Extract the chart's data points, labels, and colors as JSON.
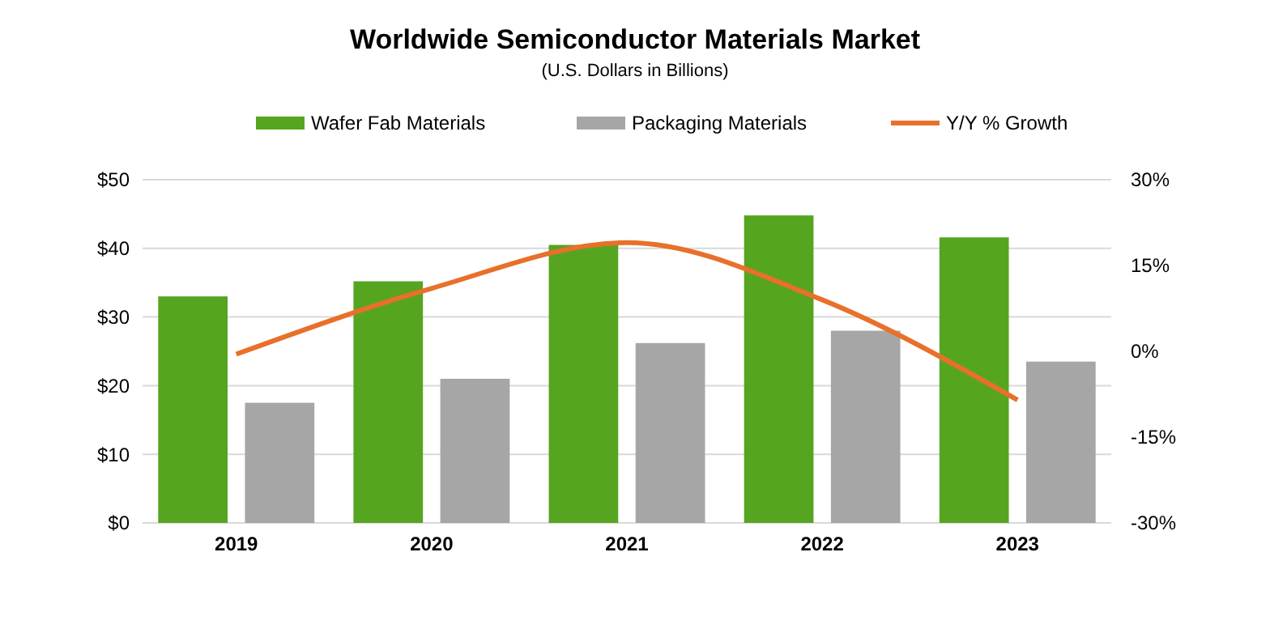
{
  "chart_data": {
    "type": "bar",
    "title": "Worldwide Semiconductor Materials Market",
    "subtitle": "(U.S. Dollars in Billions)",
    "categories": [
      "2019",
      "2020",
      "2021",
      "2022",
      "2023"
    ],
    "series": [
      {
        "name": "Wafer Fab Materials",
        "color": "#56a520",
        "values": [
          33,
          35.2,
          40.5,
          44.8,
          41.6
        ]
      },
      {
        "name": "Packaging  Materials",
        "color": "#a6a6a6",
        "values": [
          17.5,
          21,
          26.2,
          28,
          23.5
        ]
      },
      {
        "name": "Y/Y % Growth",
        "type": "line",
        "axis": "y2",
        "color": "#e8702a",
        "values": [
          -0.5,
          11,
          19,
          9,
          -8.5
        ]
      }
    ],
    "ylim": [
      0,
      50
    ],
    "yticks": [
      {
        "value": 0,
        "label": "$0"
      },
      {
        "value": 10,
        "label": "$10"
      },
      {
        "value": 20,
        "label": "$20"
      },
      {
        "value": 30,
        "label": "$30"
      },
      {
        "value": 40,
        "label": "$40"
      },
      {
        "value": 50,
        "label": "$50"
      }
    ],
    "y2lim": [
      -30,
      30
    ],
    "y2ticks": [
      {
        "value": -30,
        "label": "-30%"
      },
      {
        "value": -15,
        "label": "-15%"
      },
      {
        "value": 0,
        "label": "0%"
      },
      {
        "value": 15,
        "label": "15%"
      },
      {
        "value": 30,
        "label": "30%"
      }
    ],
    "grid": "y",
    "legend": "top",
    "marker": "none",
    "line_style": "solid"
  }
}
